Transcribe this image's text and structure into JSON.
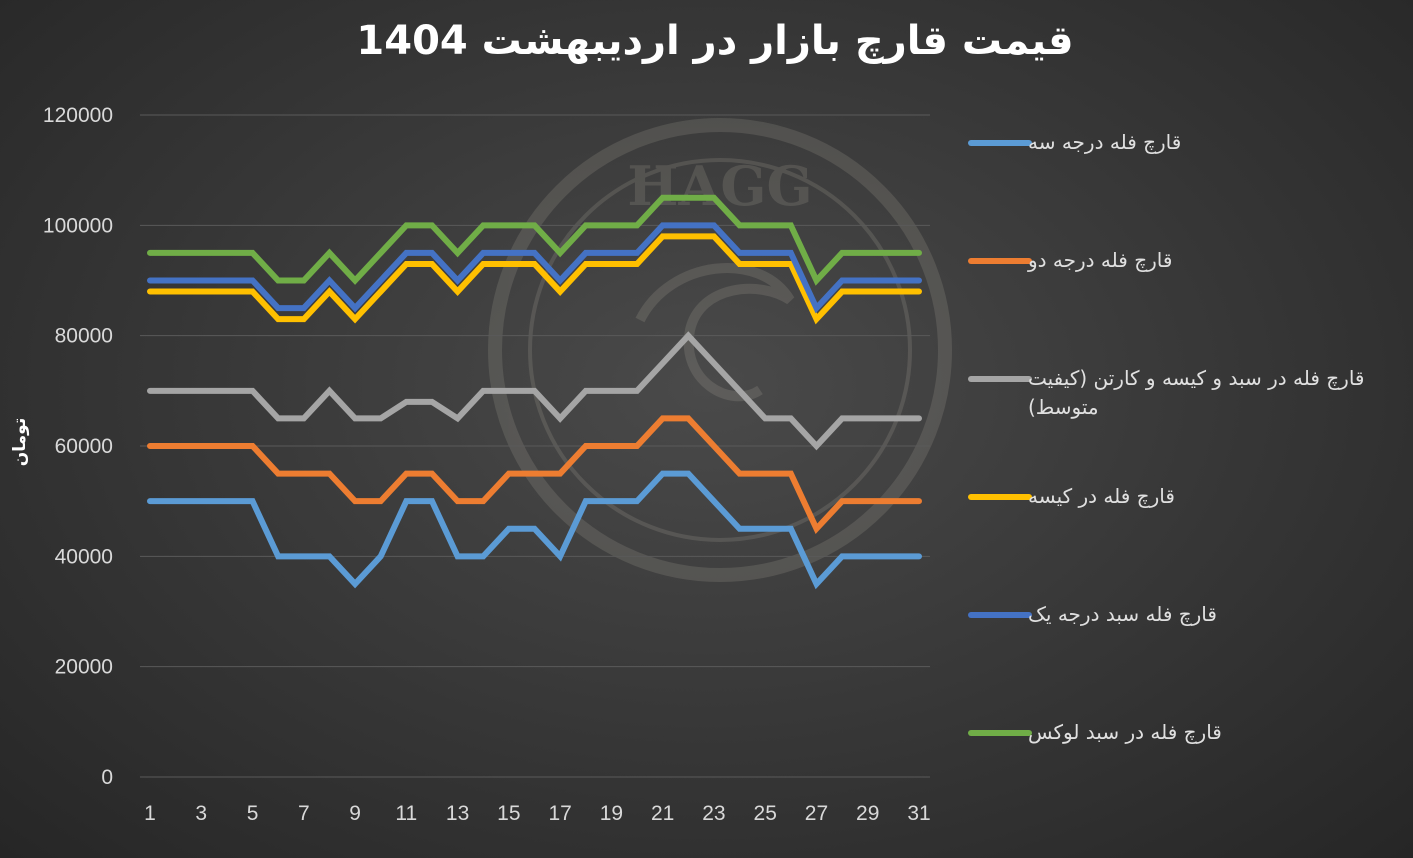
{
  "chart_data": {
    "type": "line",
    "title": "قیمت قارچ بازار در اردیبهشت 1404",
    "xlabel": "",
    "ylabel": "تومان",
    "ylim": [
      0,
      120000
    ],
    "yticks": [
      0,
      20000,
      40000,
      60000,
      80000,
      100000,
      120000
    ],
    "xtick_labels": [
      1,
      3,
      5,
      7,
      9,
      11,
      13,
      15,
      17,
      19,
      21,
      23,
      25,
      27,
      29,
      31
    ],
    "grid": true,
    "legend_position": "right",
    "x": [
      1,
      2,
      3,
      4,
      5,
      6,
      7,
      8,
      9,
      10,
      11,
      12,
      13,
      14,
      15,
      16,
      17,
      18,
      19,
      20,
      21,
      22,
      23,
      24,
      25,
      26,
      27,
      28,
      29,
      30,
      31
    ],
    "series": [
      {
        "name": "قارچ فله درجه سه",
        "color": "#5b9bd5",
        "values": [
          50000,
          50000,
          50000,
          50000,
          50000,
          40000,
          40000,
          40000,
          35000,
          40000,
          50000,
          50000,
          40000,
          40000,
          45000,
          45000,
          40000,
          50000,
          50000,
          50000,
          55000,
          55000,
          50000,
          45000,
          45000,
          45000,
          35000,
          40000,
          40000,
          40000,
          40000
        ]
      },
      {
        "name": "قارچ فله درجه دو",
        "color": "#ed7d31",
        "values": [
          60000,
          60000,
          60000,
          60000,
          60000,
          55000,
          55000,
          55000,
          50000,
          50000,
          55000,
          55000,
          50000,
          50000,
          55000,
          55000,
          55000,
          60000,
          60000,
          60000,
          65000,
          65000,
          60000,
          55000,
          55000,
          55000,
          45000,
          50000,
          50000,
          50000,
          50000
        ]
      },
      {
        "name": "قارچ فله در سبد و کیسه و کارتن (کیفیت متوسط)",
        "color": "#a5a5a5",
        "values": [
          70000,
          70000,
          70000,
          70000,
          70000,
          65000,
          65000,
          70000,
          65000,
          65000,
          68000,
          68000,
          65000,
          70000,
          70000,
          70000,
          65000,
          70000,
          70000,
          70000,
          75000,
          80000,
          75000,
          70000,
          65000,
          65000,
          60000,
          65000,
          65000,
          65000,
          65000
        ]
      },
      {
        "name": "قارچ فله در کیسه",
        "color": "#ffc000",
        "values": [
          88000,
          88000,
          88000,
          88000,
          88000,
          83000,
          83000,
          88000,
          83000,
          88000,
          93000,
          93000,
          88000,
          93000,
          93000,
          93000,
          88000,
          93000,
          93000,
          93000,
          98000,
          98000,
          98000,
          93000,
          93000,
          93000,
          83000,
          88000,
          88000,
          88000,
          88000
        ]
      },
      {
        "name": "قارچ فله سبد درجه یک",
        "color": "#4472c4",
        "values": [
          90000,
          90000,
          90000,
          90000,
          90000,
          85000,
          85000,
          90000,
          85000,
          90000,
          95000,
          95000,
          90000,
          95000,
          95000,
          95000,
          90000,
          95000,
          95000,
          95000,
          100000,
          100000,
          100000,
          95000,
          95000,
          95000,
          85000,
          90000,
          90000,
          90000,
          90000
        ]
      },
      {
        "name": "قارچ فله در سبد لوکس",
        "color": "#70ad47",
        "values": [
          95000,
          95000,
          95000,
          95000,
          95000,
          90000,
          90000,
          95000,
          90000,
          95000,
          100000,
          100000,
          95000,
          100000,
          100000,
          100000,
          95000,
          100000,
          100000,
          100000,
          105000,
          105000,
          105000,
          100000,
          100000,
          100000,
          90000,
          95000,
          95000,
          95000,
          95000
        ]
      }
    ]
  },
  "watermark": {
    "text": "HAGG"
  }
}
